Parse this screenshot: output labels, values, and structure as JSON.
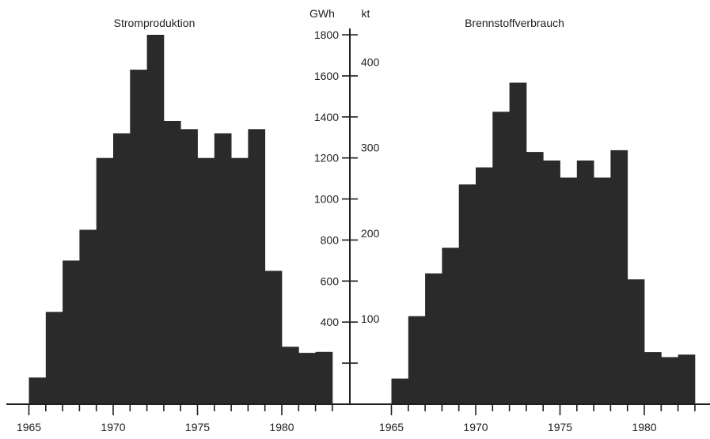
{
  "chart_data": [
    {
      "type": "bar",
      "title": "Stromproduktion",
      "x": [
        1965,
        1966,
        1967,
        1968,
        1969,
        1970,
        1971,
        1972,
        1973,
        1974,
        1975,
        1976,
        1977,
        1978,
        1979,
        1980,
        1981,
        1982,
        1983
      ],
      "values": [
        130,
        450,
        700,
        850,
        1200,
        1320,
        1630,
        1800,
        1380,
        1340,
        1200,
        1320,
        1200,
        1340,
        650,
        280,
        250,
        255,
        0
      ],
      "x_tick_labels": [
        "1965",
        "1970",
        "1975",
        "1980"
      ],
      "ylabel": "GWh",
      "ylim": [
        0,
        1800
      ],
      "y_tick_labels": [
        "400",
        "600",
        "800",
        "1000",
        "1200",
        "1400",
        "1600",
        "1800"
      ],
      "grid": false
    },
    {
      "type": "bar",
      "title": "Brennstoffverbrauch",
      "x": [
        1965,
        1966,
        1967,
        1968,
        1969,
        1970,
        1971,
        1972,
        1973,
        1974,
        1975,
        1976,
        1977,
        1978,
        1979,
        1980,
        1981,
        1982,
        1983
      ],
      "values": [
        30,
        103,
        153,
        183,
        257,
        277,
        342,
        376,
        295,
        285,
        265,
        285,
        265,
        297,
        146,
        61,
        55,
        58,
        0
      ],
      "x_tick_labels": [
        "1965",
        "1970",
        "1975",
        "1980"
      ],
      "ylabel": "kt",
      "ylim": [
        0,
        432
      ],
      "y_tick_labels": [
        "100",
        "200",
        "300",
        "400"
      ],
      "grid": false
    }
  ],
  "labels": {
    "left_title": "Stromproduktion",
    "right_title": "Brennstoffverbrauch",
    "unit_gwh": "GWh",
    "unit_kt": "kt"
  }
}
